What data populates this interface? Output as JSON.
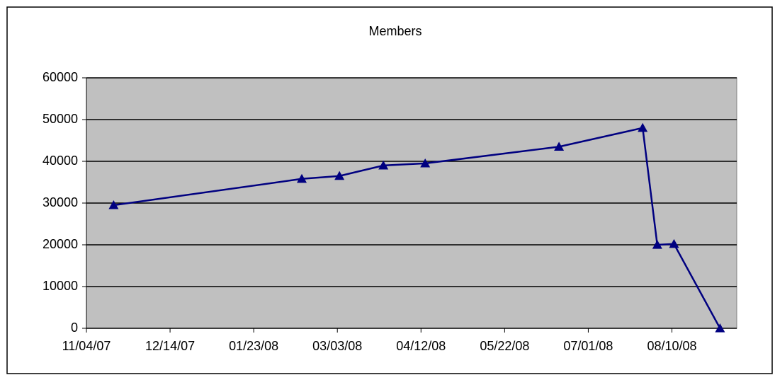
{
  "chart_data": {
    "type": "line",
    "title": "Members",
    "x": [
      "2007-11-17",
      "2008-02-15",
      "2008-03-04",
      "2008-03-25",
      "2008-04-14",
      "2008-06-17",
      "2008-07-27",
      "2008-08-03",
      "2008-08-11",
      "2008-09-02"
    ],
    "values": [
      29500,
      35800,
      36500,
      39000,
      39500,
      43500,
      48000,
      20000,
      20200,
      0
    ],
    "color": "#000080",
    "xlim": [
      "2007-11-04",
      "2008-09-10"
    ],
    "xticks": [
      {
        "value": "2007-11-04",
        "label": "11/04/07"
      },
      {
        "value": "2007-12-14",
        "label": "12/14/07"
      },
      {
        "value": "2008-01-23",
        "label": "01/23/08"
      },
      {
        "value": "2008-03-03",
        "label": "03/03/08"
      },
      {
        "value": "2008-04-12",
        "label": "04/12/08"
      },
      {
        "value": "2008-05-22",
        "label": "05/22/08"
      },
      {
        "value": "2008-07-01",
        "label": "07/01/08"
      },
      {
        "value": "2008-08-10",
        "label": "08/10/08"
      }
    ],
    "ylim": [
      0,
      60000
    ],
    "yticks": [
      0,
      10000,
      20000,
      30000,
      40000,
      50000,
      60000
    ],
    "grid": true
  }
}
